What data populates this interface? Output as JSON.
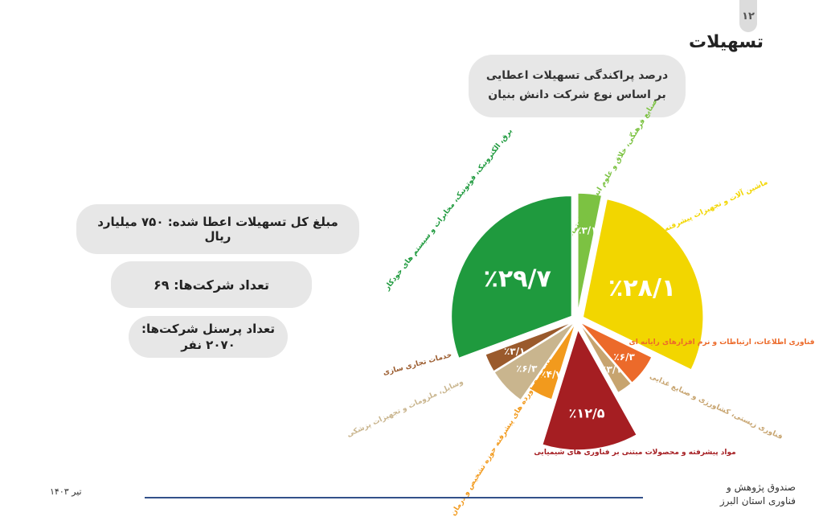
{
  "page": {
    "number": "۱۲",
    "title": "تسهیلات"
  },
  "chart_title": "درصد پراکندگی تسهیلات اعطایی بر اساس نوع شرکت دانش بنیان",
  "stats": {
    "total": "مبلغ کل تسهیلات اعطا شده: ۷۵۰ میلیارد ریال",
    "companies": "تعداد شرکت‌ها: ۶۹",
    "personnel_line1": "تعداد پرسنل شرکت‌ها:",
    "personnel_line2": "۲۰۷۰ نفر"
  },
  "footer": {
    "date": "تیر ۱۴۰۳",
    "org_line1": "صندوق پژوهش و",
    "org_line2": "فناوری  استان البرز"
  },
  "chart_data": {
    "type": "pie",
    "slices": [
      {
        "value": 3.1,
        "label": "٪۳/۱",
        "category": "صنایع فرهنگی، خلاق و علوم انسانی و اجتماعی",
        "color": "#7cc242"
      },
      {
        "value": 28.1,
        "label": "٪۲۸/۱",
        "category": "ماشین آلات و تجهیزات پیشرفته",
        "color": "#f2d600"
      },
      {
        "value": 6.3,
        "label": "٪۶/۳",
        "category": "فناوری اطلاعات، ارتباطات و نرم افزارهای رایانه ای",
        "color": "#ec6a2a"
      },
      {
        "value": 3.1,
        "label": "٪۳/۱",
        "category": "فناوری زیستی، کشاورزی و صنایع غذایی",
        "color": "#c7a46f"
      },
      {
        "value": 12.5,
        "label": "٪۱۲/۵",
        "category": "مواد پیشرفته و محصولات مبتنی بر فناوری های شیمیایی",
        "color": "#a51e22"
      },
      {
        "value": 4.7,
        "label": "٪۴/۷",
        "category": "دارو و فرآورده های پیشرفته حوزه تشخیص و درمان",
        "color": "#f29a1d"
      },
      {
        "value": 6.3,
        "label": "٪۶/۳",
        "category": "وسایل، ملزومات و تجهیزات پزشکی",
        "color": "#c9b58e"
      },
      {
        "value": 3.1,
        "label": "٪۳/۱",
        "category": "خدمات تجاری سازی",
        "color": "#9a5a2c"
      },
      {
        "value": 29.7,
        "label": "٪۲۹/۷",
        "category": "برق، الکترونیک، فوتونیک، مخابرات و سیستم های خودکار",
        "color": "#1f9a3e"
      }
    ]
  }
}
